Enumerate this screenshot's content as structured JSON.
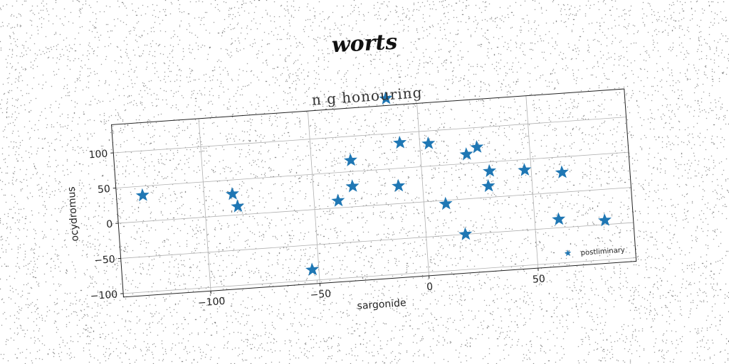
{
  "suptitle": "worts",
  "chart_data": {
    "type": "scatter",
    "title": "n g honouring",
    "xlabel": "sargonide",
    "ylabel": "ocydromus",
    "xlim": [
      -140,
      95
    ],
    "ylim": [
      -105,
      140
    ],
    "xticks": [
      -100,
      -50,
      0,
      50
    ],
    "yticks": [
      -100,
      -50,
      0,
      50,
      100
    ],
    "grid": true,
    "legend_position": "lower-right",
    "marker": "star",
    "color": "#1f77b4",
    "series": [
      {
        "name": "postliminary",
        "points": [
          [
            -128,
            37
          ],
          [
            -87,
            30
          ],
          [
            -85,
            12
          ],
          [
            -53,
            -85
          ],
          [
            -39,
            10
          ],
          [
            -32,
            66
          ],
          [
            -32,
            29
          ],
          [
            -14,
            150
          ],
          [
            -11,
            25
          ],
          [
            -9,
            86
          ],
          [
            4,
            82
          ],
          [
            10,
            -5
          ],
          [
            18,
            -50
          ],
          [
            21,
            63
          ],
          [
            26,
            72
          ],
          [
            30,
            16
          ],
          [
            31,
            37
          ],
          [
            47,
            35
          ],
          [
            61,
            -38
          ],
          [
            64,
            28
          ],
          [
            82,
            -44
          ]
        ]
      }
    ]
  }
}
